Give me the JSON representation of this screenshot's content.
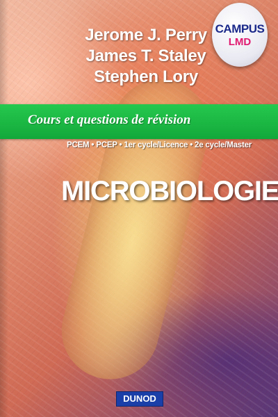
{
  "authors": [
    "Jerome J. Perry",
    "James T. Staley",
    "Stephen Lory"
  ],
  "badge": {
    "line1": "CAMPUS",
    "line2": "LMD"
  },
  "series": "Cours et questions de révision",
  "levels": "PCEM • PCEP • 1er cycle/Licence • 2e cycle/Master",
  "title": "MICROBIOLOGIE",
  "publisher": "DUNOD",
  "colors": {
    "band": "#1fbf48",
    "badge_blue": "#1b2a8a",
    "badge_pink": "#e01a70",
    "publisher_bg": "#1a3fa8"
  }
}
